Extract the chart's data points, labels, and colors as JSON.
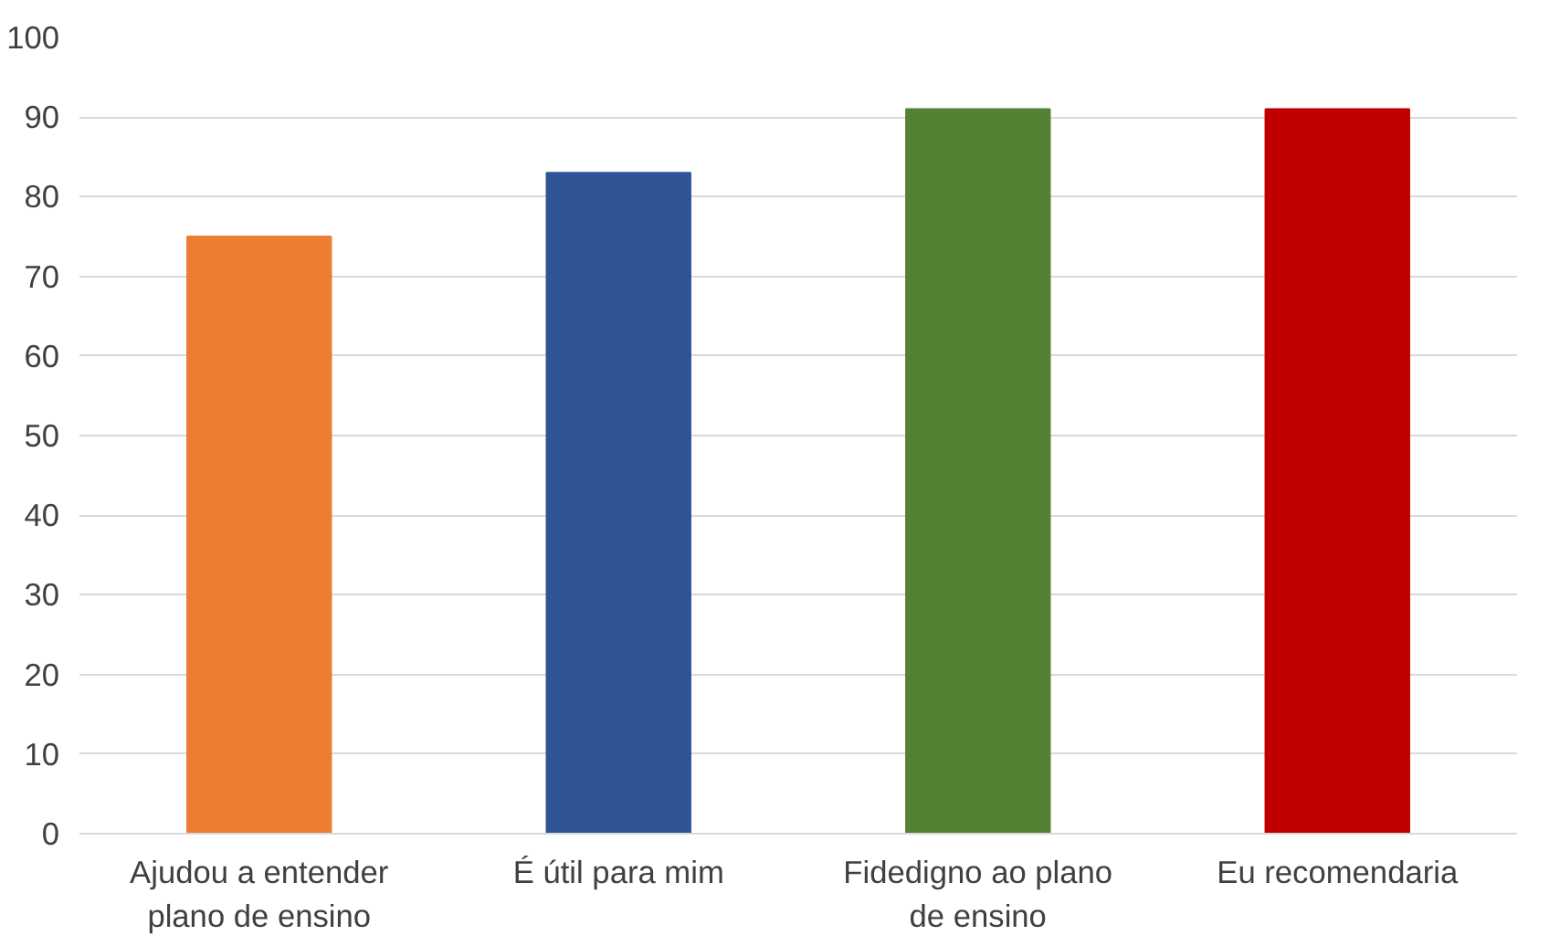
{
  "chart_data": {
    "type": "bar",
    "categories": [
      "Ajudou a entender plano de ensino",
      "É útil para mim",
      "Fidedigno ao plano de ensino",
      "Eu recomendaria"
    ],
    "values": [
      75,
      83,
      91,
      91
    ],
    "colors": [
      "#ed7d31",
      "#2f5597",
      "#548235",
      "#c00000"
    ],
    "ylim": [
      0,
      100
    ],
    "yticks": [
      0,
      10,
      20,
      30,
      40,
      50,
      60,
      70,
      80,
      90,
      100
    ],
    "grid": "y"
  }
}
